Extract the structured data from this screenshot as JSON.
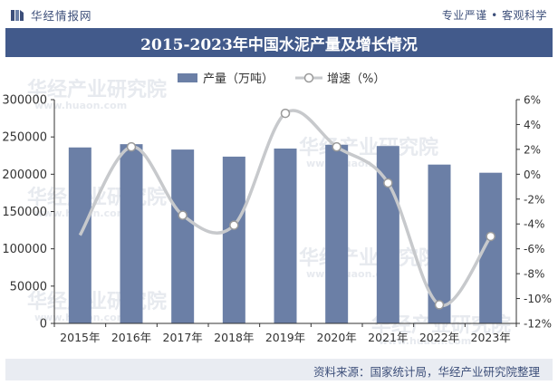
{
  "header": {
    "brand_name": "华经情报网",
    "slogan": "专业严谨 • 客观科学"
  },
  "footer": {
    "source": "资料来源：国家统计局，华经产业研究院整理"
  },
  "watermark": {
    "text": "华经产业研究院",
    "url": "www.huaon.com"
  },
  "colors": {
    "bar": "#6b7fa6",
    "line": "#c7c9cc",
    "marker_fill": "#ffffff",
    "title_band": "#425a8b",
    "text": "#333333"
  },
  "chart_data": {
    "type": "bar",
    "title": "2015-2023年中国水泥产量及增长情况",
    "categories": [
      "2015年",
      "2016年",
      "2017年",
      "2018年",
      "2019年",
      "2020年",
      "2021年",
      "2022年",
      "2023年"
    ],
    "series": [
      {
        "name": "产量（万吨）",
        "type": "bar",
        "axis": "left",
        "values": [
          235919,
          240295,
          233084,
          223610,
          234431,
          239470,
          237800,
          212927,
          202000
        ]
      },
      {
        "name": "增速（%）",
        "type": "line",
        "axis": "right",
        "values": [
          -4.9,
          2.2,
          -3.3,
          -4.1,
          4.9,
          2.2,
          -0.7,
          -10.5,
          -5.0
        ]
      }
    ],
    "y_left": {
      "min": 0,
      "max": 300000,
      "ticks": [
        "0",
        "50000",
        "100000",
        "150000",
        "200000",
        "250000",
        "300000"
      ]
    },
    "y_right": {
      "min": -12,
      "max": 6,
      "ticks": [
        "-12%",
        "-10%",
        "-8%",
        "-6%",
        "-4%",
        "-2%",
        "0%",
        "2%",
        "4%",
        "6%"
      ]
    },
    "legend_position": "top-center",
    "grid": false
  }
}
